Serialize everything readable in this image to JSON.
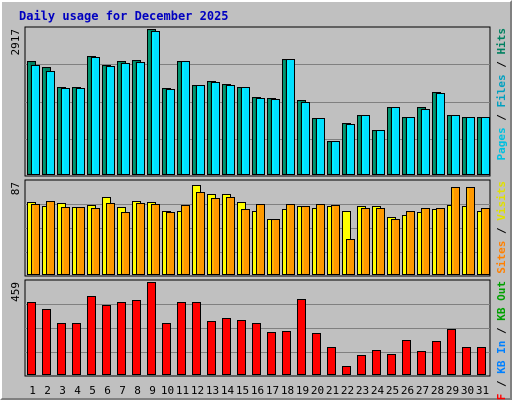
{
  "chart_data": {
    "type": "bar",
    "title": "Daily usage for December 2025",
    "categories": [
      "1",
      "2",
      "3",
      "4",
      "5",
      "6",
      "7",
      "8",
      "9",
      "10",
      "11",
      "12",
      "13",
      "14",
      "15",
      "16",
      "17",
      "18",
      "19",
      "20",
      "21",
      "22",
      "23",
      "24",
      "25",
      "26",
      "27",
      "28",
      "29",
      "30",
      "31"
    ],
    "weekend_days": [
      "6",
      "7",
      "13",
      "14",
      "20",
      "21",
      "27",
      "28"
    ],
    "panels": [
      {
        "name": "top",
        "max_label": "2917",
        "ymax": 2917,
        "legend": [
          {
            "text": "Pages",
            "color": "#00c0e0"
          },
          {
            "text": " / ",
            "color": "#000000"
          },
          {
            "text": "Files",
            "color": "#00a0c0"
          },
          {
            "text": " / ",
            "color": "#000000"
          },
          {
            "text": "Hits",
            "color": "#008060"
          }
        ],
        "series": [
          {
            "name": "Hits",
            "color": "#008060",
            "values": [
              2270,
              2150,
              1750,
              1760,
              2380,
              2190,
              2270,
              2290,
              2910,
              1740,
              2270,
              1790,
              1870,
              1820,
              1760,
              1540,
              1530,
              2320,
              1480,
              1130,
              670,
              1020,
              1190,
              880,
              1340,
              1150,
              1350,
              1640,
              1190,
              1150,
              1140
            ]
          },
          {
            "name": "Files",
            "color": "#00e0ff",
            "values": [
              2200,
              2080,
              1740,
              1730,
              2360,
              2170,
              2230,
              2260,
              2880,
              1720,
              2270,
              1790,
              1860,
              1800,
              1750,
              1530,
              1510,
              2320,
              1440,
              1130,
              660,
              1000,
              1190,
              880,
              1340,
              1140,
              1310,
              1630,
              1190,
              1150,
              1140
            ]
          }
        ]
      },
      {
        "name": "middle",
        "max_label": "87",
        "ymax": 87,
        "legend": [
          {
            "text": "Sites",
            "color": "#ff8000"
          },
          {
            "text": " / ",
            "color": "#000000"
          },
          {
            "text": "Visits",
            "color": "#e0e000"
          }
        ],
        "series": [
          {
            "name": "Visits",
            "color": "#ffff00",
            "values": [
              68,
              64,
              67,
              63,
              65,
              73,
              63,
              69,
              68,
              60,
              60,
              84,
              76,
              76,
              68,
              60,
              52,
              61,
              64,
              62,
              64,
              60,
              64,
              64,
              54,
              56,
              59,
              61,
              65,
              64,
              60
            ]
          },
          {
            "name": "Sites",
            "color": "#ff9900",
            "values": [
              66,
              69,
              63,
              63,
              62,
              67,
              59,
              67,
              66,
              59,
              65,
              78,
              72,
              73,
              61,
              66,
              52,
              66,
              64,
              66,
              65,
              33,
              62,
              62,
              52,
              60,
              62,
              62,
              82,
              82,
              62
            ]
          }
        ]
      },
      {
        "name": "bottom",
        "max_label": "459",
        "ymax": 459,
        "legend": [
          {
            "text": "KB F",
            "color": "#ff0000"
          },
          {
            "text": " / ",
            "color": "#000000"
          },
          {
            "text": "KB In",
            "color": "#0080ff"
          },
          {
            "text": " / ",
            "color": "#000000"
          },
          {
            "text": "KB Out",
            "color": "#00a000"
          }
        ],
        "series": [
          {
            "name": "KB F",
            "color": "#ff0000",
            "values": [
              360,
              325,
              255,
              255,
              390,
              345,
              360,
              370,
              459,
              255,
              360,
              360,
              265,
              280,
              270,
              255,
              210,
              215,
              375,
              205,
              135,
              40,
              95,
              120,
              100,
              170,
              115,
              165,
              225,
              135,
              135
            ]
          }
        ]
      }
    ]
  }
}
